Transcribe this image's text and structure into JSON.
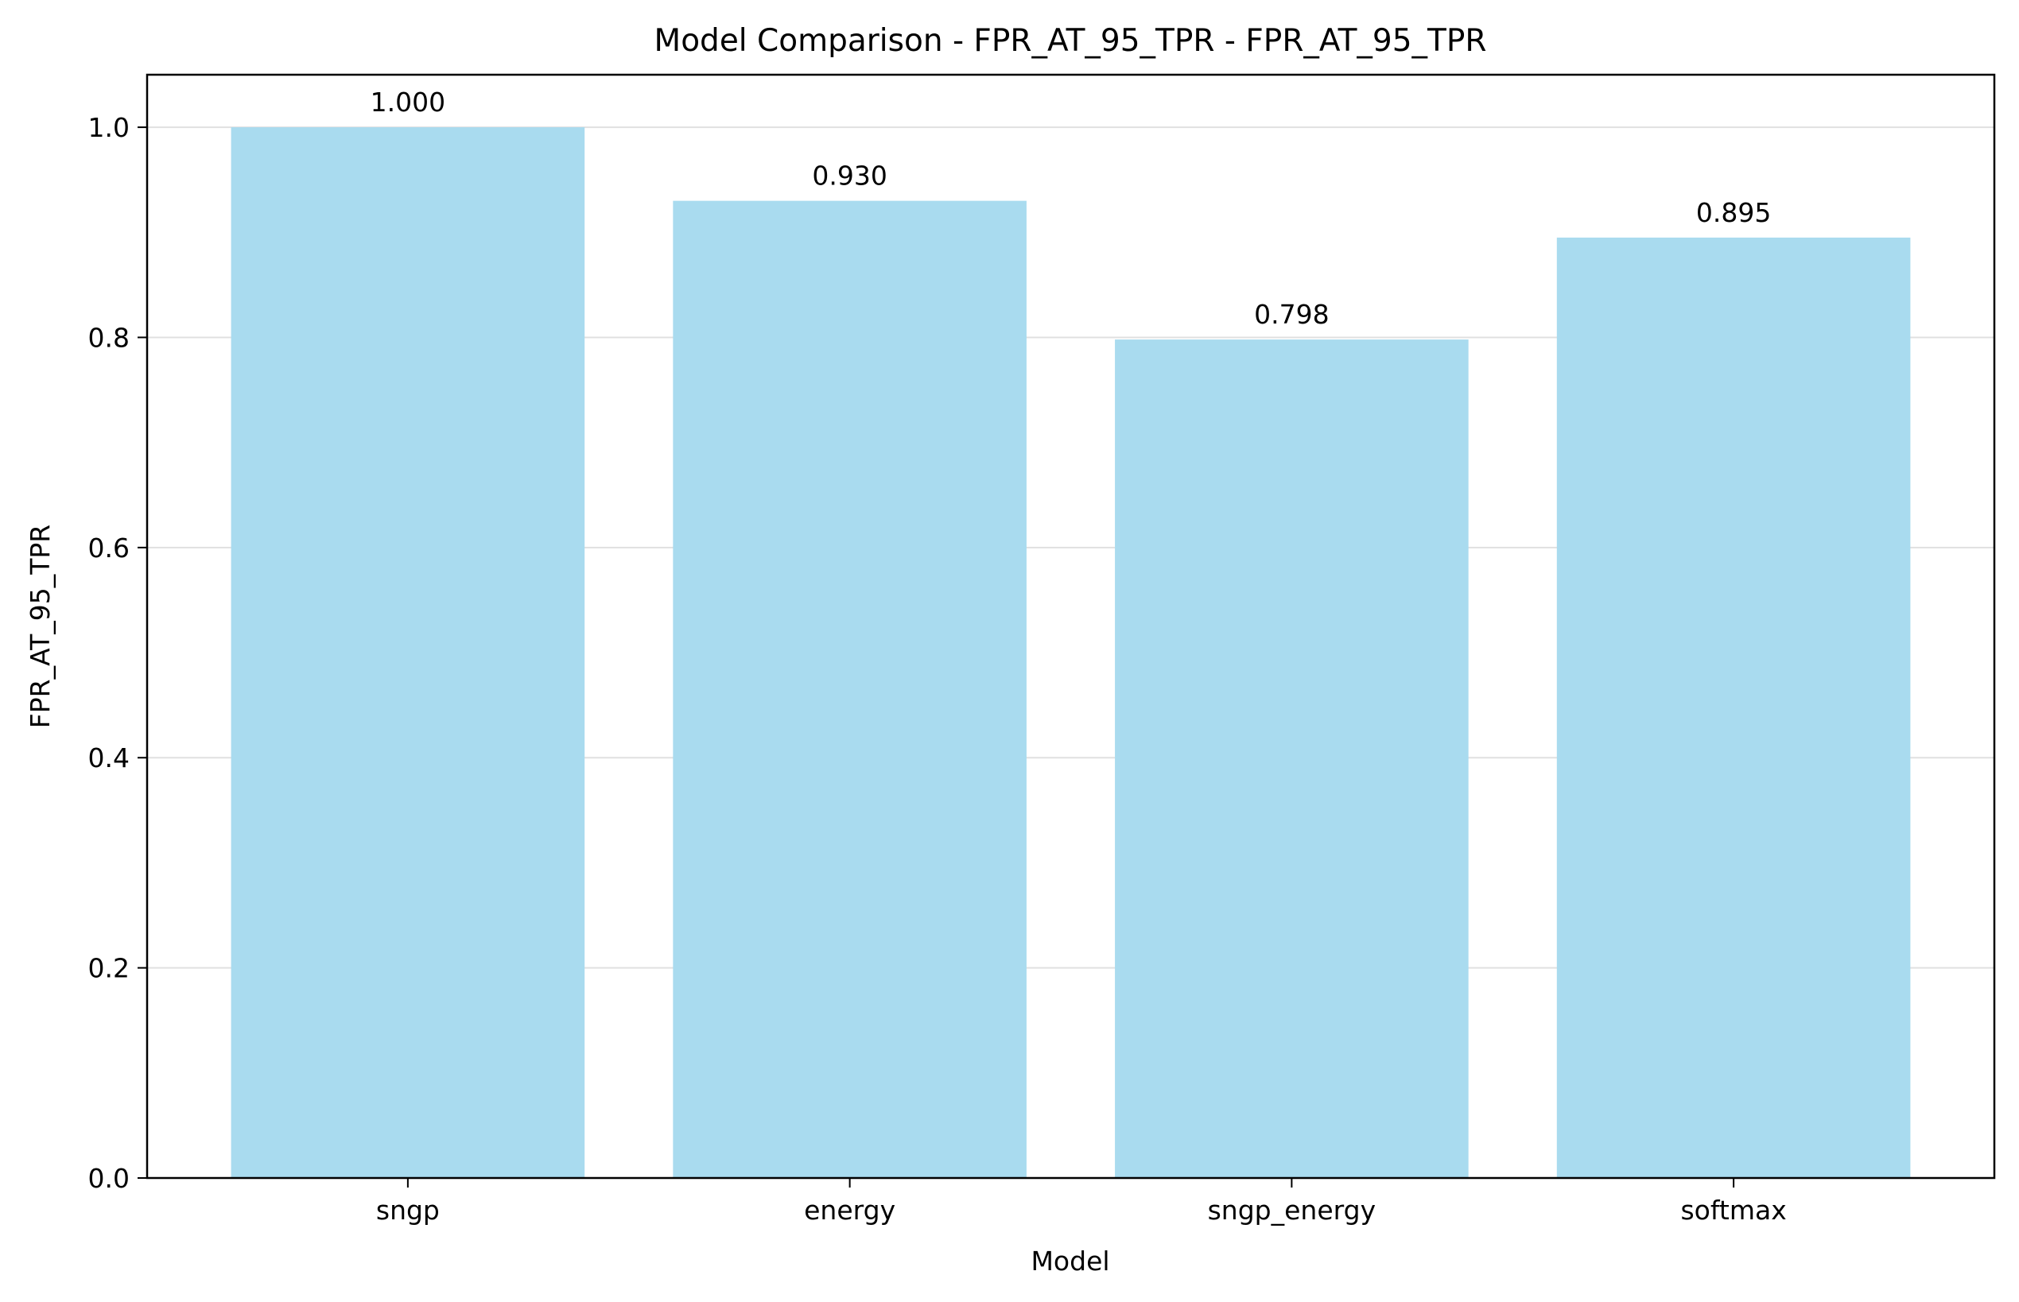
{
  "chart_data": {
    "type": "bar",
    "title": "Model Comparison - FPR_AT_95_TPR - FPR_AT_95_TPR",
    "xlabel": "Model",
    "ylabel": "FPR_AT_95_TPR",
    "categories": [
      "sngp",
      "energy",
      "sngp_energy",
      "softmax"
    ],
    "values": [
      1.0,
      0.93,
      0.798,
      0.895
    ],
    "value_labels": [
      "1.000",
      "0.930",
      "0.798",
      "0.895"
    ],
    "ylim": [
      0,
      1.05
    ],
    "yticks": [
      0.0,
      0.2,
      0.4,
      0.6,
      0.8,
      1.0
    ],
    "ytick_labels": [
      "0.0",
      "0.2",
      "0.4",
      "0.6",
      "0.8",
      "1.0"
    ],
    "grid": "y-axis",
    "bar_color": "#a9dbef",
    "legend": "none"
  }
}
